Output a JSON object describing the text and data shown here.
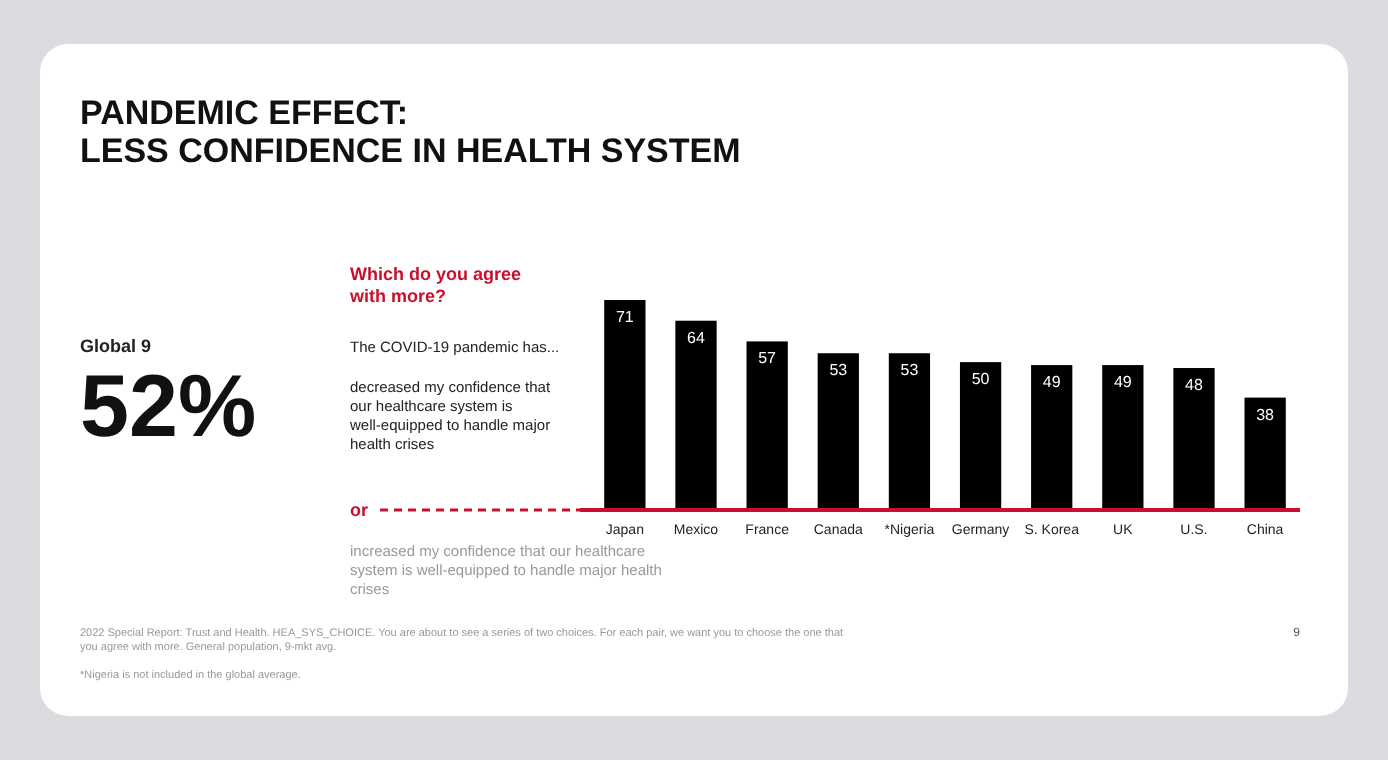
{
  "chart_data": {
    "type": "bar",
    "title": "PANDEMIC EFFECT:\nLESS CONFIDENCE IN HEALTH SYSTEM",
    "categories": [
      "Japan",
      "Mexico",
      "France",
      "Canada",
      "*Nigeria",
      "Germany",
      "S. Korea",
      "UK",
      "U.S.",
      "China"
    ],
    "values": [
      71,
      64,
      57,
      53,
      53,
      50,
      49,
      49,
      48,
      38
    ],
    "color": "#000000",
    "data_labels": true,
    "annotations": [
      "Which do you agree with more?",
      "Global 9",
      "52%",
      "The COVID-19 pandemic has...",
      "decreased my confidence that our healthcare system is well-equipped to handle major health crises",
      "or",
      "increased my confidence that our healthcare system is well-equipped to handle major health crises",
      "2022 Special Report: Trust and Health. HEA_SYS_CHOICE. You are about to see a series of two choices. For each pair, we want you to choose the one that you agree with more. General population, 9-mkt avg.",
      "*Nigeria is not included in the global average.",
      "9"
    ]
  }
}
